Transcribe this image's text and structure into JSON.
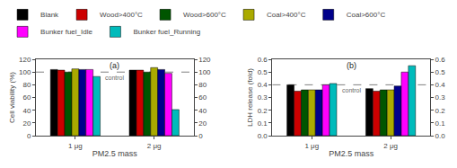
{
  "chart_data": [
    {
      "type": "bar",
      "xlabel": "PM2.5 mass",
      "ylabel": "Cell viability (%)",
      "categories": [
        "1 μg",
        "2 μg"
      ],
      "series": [
        {
          "name": "Blank",
          "color": "#000000",
          "values": [
            104,
            103
          ]
        },
        {
          "name": "Wood>400°C",
          "color": "#cc0000",
          "values": [
            103,
            103
          ]
        },
        {
          "name": "Wood>600°C",
          "color": "#005500",
          "values": [
            100,
            100
          ]
        },
        {
          "name": "Coal>400°C",
          "color": "#aaaa00",
          "values": [
            105,
            107
          ]
        },
        {
          "name": "Coal>600°C",
          "color": "#00008b",
          "values": [
            104,
            104
          ]
        },
        {
          "name": "Bunker fuel_Idle",
          "color": "#ff00ff",
          "values": [
            104,
            98
          ]
        },
        {
          "name": "Bunker fuel_Running",
          "color": "#00bbbb",
          "values": [
            93,
            41
          ]
        }
      ],
      "ylim": [
        0,
        120
      ],
      "yticks": [
        0,
        20,
        40,
        60,
        80,
        100,
        120
      ],
      "y2lim": [
        0,
        120
      ],
      "y2ticks": [
        0,
        20,
        40,
        60,
        80,
        100,
        120
      ],
      "control_line": {
        "value": 100,
        "label": "control"
      },
      "annotations": [
        {
          "text": "(a)"
        }
      ],
      "grid": false,
      "legend": "top"
    },
    {
      "type": "bar",
      "xlabel": "PM2.5 mass",
      "ylabel": "LDH release (fold)",
      "categories": [
        "1 μg",
        "2 μg"
      ],
      "series": [
        {
          "name": "Blank",
          "color": "#000000",
          "values": [
            0.4,
            0.37
          ]
        },
        {
          "name": "Wood>400°C",
          "color": "#cc0000",
          "values": [
            0.35,
            0.35
          ]
        },
        {
          "name": "Wood>600°C",
          "color": "#005500",
          "values": [
            0.36,
            0.36
          ]
        },
        {
          "name": "Coal>400°C",
          "color": "#aaaa00",
          "values": [
            0.36,
            0.36
          ]
        },
        {
          "name": "Coal>600°C",
          "color": "#00008b",
          "values": [
            0.36,
            0.39
          ]
        },
        {
          "name": "Bunker fuel_Idle",
          "color": "#ff00ff",
          "values": [
            0.4,
            0.5
          ]
        },
        {
          "name": "Bunker fuel_Running",
          "color": "#00bbbb",
          "values": [
            0.41,
            0.55
          ]
        }
      ],
      "ylim": [
        0.0,
        0.6
      ],
      "yticks": [
        {
          "value": 0.0,
          "label": "0.0"
        },
        0.1,
        0.2,
        0.3,
        0.4,
        0.5,
        0.6
      ],
      "y2lim": [
        0.0,
        0.6
      ],
      "y2ticks": [
        {
          "value": 0.0,
          "label": "0.0"
        },
        0.1,
        0.2,
        0.3,
        0.4,
        0.5,
        0.6
      ],
      "control_line": {
        "value": 0.4,
        "label": "control"
      },
      "annotations": [
        {
          "text": "(b)"
        }
      ],
      "grid": false,
      "legend": "top"
    }
  ]
}
